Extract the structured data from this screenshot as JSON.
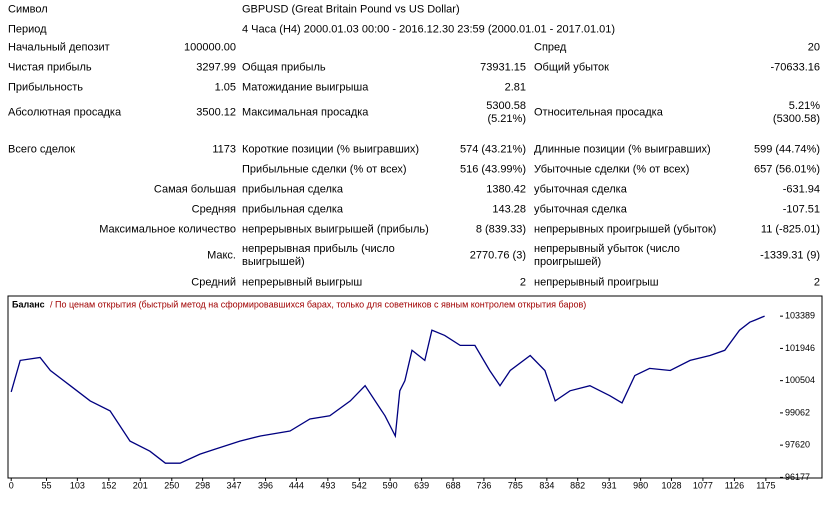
{
  "report": {
    "symbol_label": "Символ",
    "symbol": "GBPUSD (Great Britain Pound vs US Dollar)",
    "period_label": "Период",
    "period": "4 Часа (H4) 2000.01.03 00:00 - 2016.12.30 23:59 (2000.01.01 - 2017.01.01)",
    "rows": [
      [
        "Начальный депозит",
        "100000.00",
        null,
        null,
        "Спред",
        "20"
      ],
      [
        "Чистая прибыль",
        "3297.99",
        "Общая прибыль",
        "73931.15",
        "Общий убыток",
        "-70633.16"
      ],
      [
        "Прибыльность",
        "1.05",
        "Матожидание выигрыша",
        "2.81",
        null,
        null
      ],
      [
        "Абсолютная просадка",
        "3500.12",
        "Максимальная просадка",
        "5300.58\n(5.21%)",
        "Относительная просадка",
        "5.21%\n(5300.58)"
      ],
      [
        "Всего сделок",
        "1173",
        "Короткие позиции (% выигравших)",
        "574 (43.21%)",
        "Длинные позиции (% выигравших)",
        "599 (44.74%)"
      ],
      [
        null,
        null,
        "Прибыльные сделки (% от всех)",
        "516 (43.99%)",
        "Убыточные сделки (% от всех)",
        "657 (56.01%)"
      ],
      [
        "Самая большая",
        null,
        "прибыльная сделка",
        "1380.42",
        "убыточная сделка",
        "-631.94"
      ],
      [
        "Средняя",
        null,
        "прибыльная сделка",
        "143.28",
        "убыточная сделка",
        "-107.51"
      ],
      [
        "Максимальное количество",
        null,
        "непрерывных выигрышей (прибыль)",
        "8 (839.33)",
        "непрерывных проигрышей (убыток)",
        "11 (-825.01)"
      ],
      [
        "Макс.",
        null,
        "непрерывная прибыль (число выигрышей)",
        "2770.76 (3)",
        "непрерывный убыток (число проигрышей)",
        "-1339.31 (9)"
      ],
      [
        "Средний",
        null,
        "непрерывный выигрыш",
        "2",
        "непрерывный проигрыш",
        "2"
      ]
    ]
  },
  "chart_data": {
    "type": "line",
    "annotation": "/ По ценам открытия (быстрый метод на сформировавшихся барах, только для советников с явным контролем открытия баров)",
    "x": [
      0,
      14,
      45,
      61,
      92,
      123,
      154,
      185,
      216,
      240,
      263,
      294,
      317,
      356,
      388,
      434,
      465,
      496,
      528,
      551,
      582,
      598,
      605,
      613,
      624,
      644,
      655,
      675,
      699,
      722,
      745,
      761,
      777,
      808,
      831,
      847,
      870,
      901,
      932,
      951,
      971,
      994,
      1026,
      1057,
      1088,
      1111,
      1134,
      1150,
      1158,
      1173
    ],
    "series": [
      {
        "name": "Баланс",
        "color": "#000080",
        "values": [
          100000,
          101410,
          101540,
          100960,
          100280,
          99600,
          99150,
          97800,
          97350,
          96810,
          96810,
          97220,
          97440,
          97800,
          98030,
          98250,
          98790,
          98930,
          99600,
          100280,
          98930,
          98030,
          100050,
          100500,
          101860,
          101410,
          102760,
          102530,
          102080,
          102080,
          100960,
          100280,
          100960,
          101630,
          100960,
          99600,
          100050,
          100280,
          99830,
          99510,
          100730,
          101050,
          100960,
          101410,
          101630,
          101860,
          102760,
          103120,
          103210,
          103390
        ]
      }
    ],
    "xlim": [
      -5,
      1197
    ],
    "ylim": [
      96150,
      104290
    ],
    "xticks": [
      0,
      55,
      103,
      152,
      201,
      250,
      298,
      347,
      396,
      444,
      493,
      542,
      590,
      639,
      688,
      736,
      785,
      834,
      882,
      931,
      980,
      1028,
      1077,
      1126,
      1175
    ],
    "yticks": [
      96177,
      97620,
      99062,
      100504,
      101946,
      103389
    ]
  }
}
